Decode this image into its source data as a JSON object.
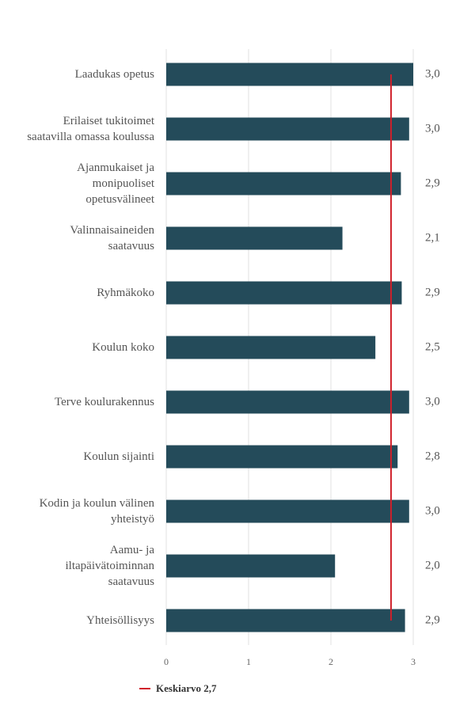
{
  "chart_data": {
    "type": "bar",
    "orientation": "horizontal",
    "categories": [
      "Laadukas opetus",
      "Erilaiset tukitoimet\nsaatavilla omassa koulussa",
      "Ajanmukaiset ja\nmonipuoliset\nopetusvälineet",
      "Valinnaisaineiden\nsaatavuus",
      "Ryhmäkoko",
      "Koulun koko",
      "Terve koulurakennus",
      "Koulun sijainti",
      "Kodin ja koulun välinen\nyhteistyö",
      "Aamu- ja\niltapäivätoiminnan\nsaatavuus",
      "Yhteisöllisyys"
    ],
    "values": [
      3.0,
      2.95,
      2.85,
      2.14,
      2.86,
      2.54,
      2.95,
      2.81,
      2.95,
      2.05,
      2.9
    ],
    "value_labels": [
      "3,0",
      "3,0",
      "2,9",
      "2,1",
      "2,9",
      "2,5",
      "3,0",
      "2,8",
      "3,0",
      "2,0",
      "2,9"
    ],
    "xlim": [
      0,
      3
    ],
    "x_ticks": [
      "0",
      "1",
      "2",
      "3"
    ],
    "grid": true,
    "bar_color": "#244b5a",
    "average": {
      "value": 2.73,
      "label": "Keskiarvo 2,7",
      "color": "#d0202a"
    },
    "legend_position": "bottom-left"
  }
}
